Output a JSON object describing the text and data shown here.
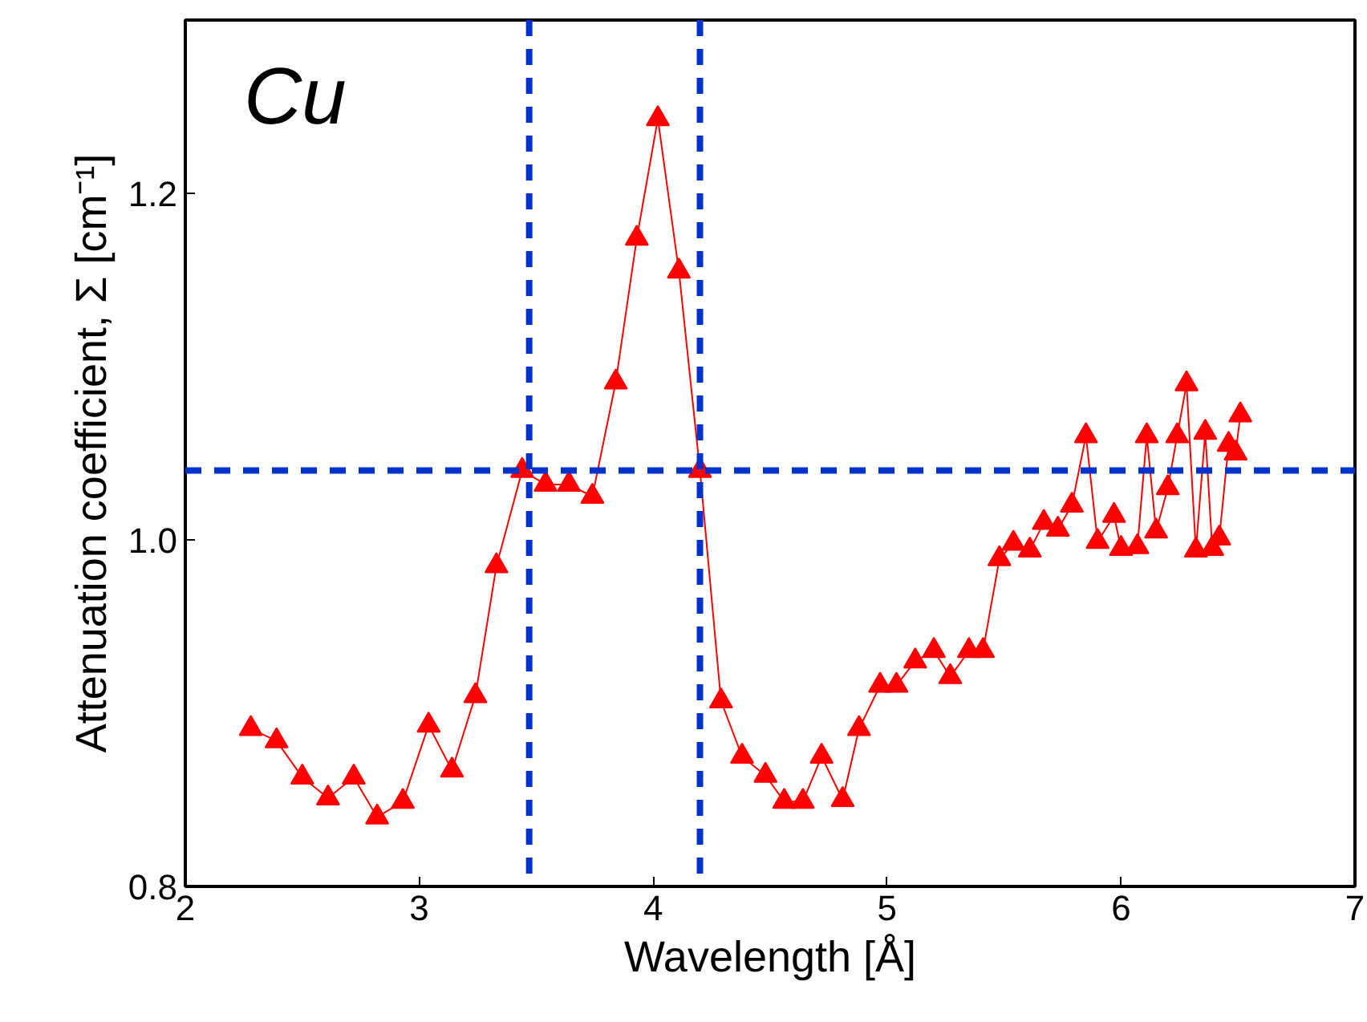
{
  "chart_data": {
    "type": "line",
    "xlabel": "Wavelength [Å]",
    "ylabel": "Attenuation coefficient, Σ [cm⁻¹]",
    "annotations": [
      "Cu"
    ],
    "xlim": [
      2,
      7
    ],
    "xticks": [
      2,
      3,
      4,
      5,
      6,
      7
    ],
    "ylim": [
      0.8,
      1.3
    ],
    "yticks": [
      {
        "value": 0.8,
        "label": "0.8"
      },
      {
        "value": 1.0,
        "label": "1.0"
      },
      {
        "value": 1.2,
        "label": "1.2"
      }
    ],
    "grid": false,
    "marker": "triangle",
    "line_style": "solid",
    "series": [
      {
        "color": "#ff0000",
        "x": [
          2.28,
          2.39,
          2.5,
          2.61,
          2.72,
          2.82,
          2.93,
          3.04,
          3.14,
          3.24,
          3.33,
          3.44,
          3.54,
          3.64,
          3.74,
          3.84,
          3.93,
          4.02,
          4.11,
          4.2,
          4.29,
          4.38,
          4.48,
          4.56,
          4.64,
          4.72,
          4.81,
          4.88,
          4.97,
          5.04,
          5.12,
          5.2,
          5.27,
          5.35,
          5.41,
          5.48,
          5.54,
          5.61,
          5.67,
          5.73,
          5.79,
          5.85,
          5.9,
          5.97,
          6.0,
          6.07,
          6.11,
          6.15,
          6.2,
          6.24,
          6.28,
          6.32,
          6.36,
          6.39,
          6.42,
          6.46,
          6.49,
          6.51
        ],
        "values": [
          0.891,
          0.884,
          0.863,
          0.851,
          0.863,
          0.84,
          0.849,
          0.893,
          0.867,
          0.91,
          0.985,
          1.04,
          1.032,
          1.032,
          1.025,
          1.091,
          1.174,
          1.243,
          1.155,
          1.04,
          0.907,
          0.875,
          0.864,
          0.849,
          0.849,
          0.875,
          0.85,
          0.891,
          0.916,
          0.916,
          0.93,
          0.936,
          0.921,
          0.936,
          0.936,
          0.989,
          0.998,
          0.994,
          1.01,
          1.006,
          1.02,
          1.06,
          0.999,
          1.014,
          0.995,
          0.996,
          1.06,
          1.005,
          1.03,
          1.06,
          1.09,
          0.994,
          1.062,
          0.995,
          1.001,
          1.055,
          1.05,
          1.072
        ]
      }
    ],
    "ref_lines": [
      {
        "axis": "x",
        "value": 3.47,
        "color": "#0033cc",
        "line_style": "dashed"
      },
      {
        "axis": "x",
        "value": 4.2,
        "color": "#0033cc",
        "line_style": "dashed"
      },
      {
        "axis": "y",
        "value": 1.04,
        "color": "#0033cc",
        "line_style": "dashed"
      }
    ]
  }
}
